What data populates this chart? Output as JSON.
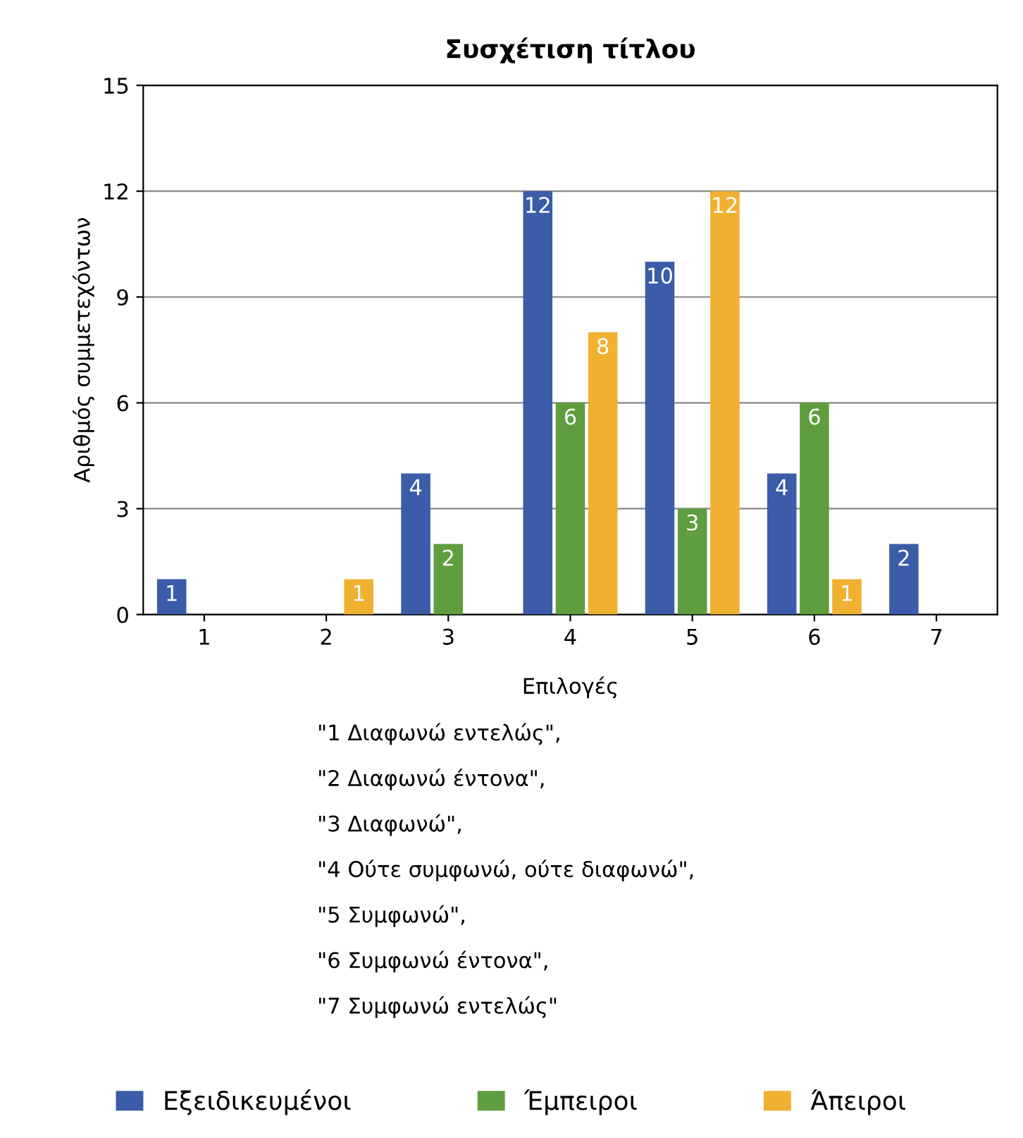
{
  "chart_data": {
    "type": "bar",
    "title": "Συσχέτιση τίτλου",
    "xlabel": "Επιλογές",
    "ylabel": "Αριθμός συμμετεχόντων",
    "categories": [
      "1",
      "2",
      "3",
      "4",
      "5",
      "6",
      "7"
    ],
    "series": [
      {
        "name": "Εξειδικευμένοι",
        "color": "#3b5ca8",
        "values": [
          1,
          0,
          4,
          12,
          10,
          4,
          2
        ],
        "value_labels": [
          "1",
          null,
          "4",
          "12",
          "10",
          "4",
          "2"
        ]
      },
      {
        "name": "Έμπειροι",
        "color": "#5f9e3e",
        "values": [
          0,
          0,
          2,
          6,
          3,
          6,
          0
        ],
        "value_labels": [
          null,
          null,
          "2",
          "6",
          "3",
          "6",
          null
        ]
      },
      {
        "name": "Άπειροι",
        "color": "#f0b030",
        "values": [
          0,
          1,
          0,
          8,
          12,
          1,
          0
        ],
        "value_labels": [
          null,
          "1",
          null,
          "8",
          "12",
          "1",
          null
        ]
      }
    ],
    "ylim": [
      0,
      15
    ],
    "yticks": [
      0,
      3,
      6,
      9,
      12,
      15
    ],
    "grid": "y",
    "legend": "bottom",
    "annotations": [
      "\"1 Διαφωνώ εντελώς\",",
      "\"2 Διαφωνώ έντονα\",",
      "\"3 Διαφωνώ\",",
      "\"4 Ούτε συμφωνώ, ούτε διαφωνώ\",",
      "\"5 Συμφωνώ\",",
      "\"6 Συμφωνώ έντονα\",",
      "\"7 Συμφωνώ εντελώς\""
    ]
  }
}
